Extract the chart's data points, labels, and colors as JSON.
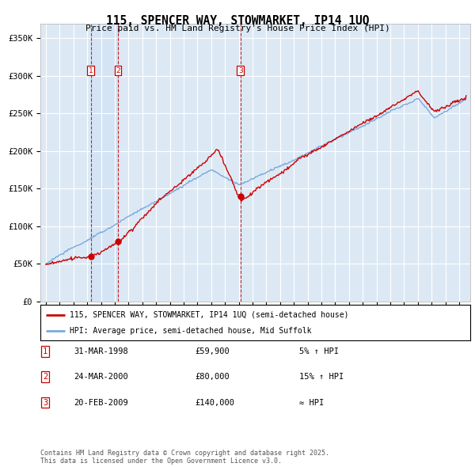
{
  "title_line1": "115, SPENCER WAY, STOWMARKET, IP14 1UQ",
  "title_line2": "Price paid vs. HM Land Registry's House Price Index (HPI)",
  "background_color": "#dce9f5",
  "fig_bg_color": "#ffffff",
  "grid_color": "#ffffff",
  "hpi_color": "#7aaadd",
  "price_color": "#cc0000",
  "ylim": [
    0,
    370000
  ],
  "yticks": [
    0,
    50000,
    100000,
    150000,
    200000,
    250000,
    300000,
    350000
  ],
  "ytick_labels": [
    "£0",
    "£50K",
    "£100K",
    "£150K",
    "£200K",
    "£250K",
    "£300K",
    "£350K"
  ],
  "xlim_left": 1994.6,
  "xlim_right": 2025.8,
  "sales": [
    {
      "year": 1998.25,
      "price": 59900,
      "label": "1"
    },
    {
      "year": 2000.23,
      "price": 80000,
      "label": "2"
    },
    {
      "year": 2009.13,
      "price": 140000,
      "label": "3"
    }
  ],
  "legend_line1": "115, SPENCER WAY, STOWMARKET, IP14 1UQ (semi-detached house)",
  "legend_line2": "HPI: Average price, semi-detached house, Mid Suffolk",
  "table_data": [
    [
      "1",
      "31-MAR-1998",
      "£59,900",
      "5% ↑ HPI"
    ],
    [
      "2",
      "24-MAR-2000",
      "£80,000",
      "15% ↑ HPI"
    ],
    [
      "3",
      "20-FEB-2009",
      "£140,000",
      "≈ HPI"
    ]
  ],
  "footnote": "Contains HM Land Registry data © Crown copyright and database right 2025.\nThis data is licensed under the Open Government Licence v3.0."
}
